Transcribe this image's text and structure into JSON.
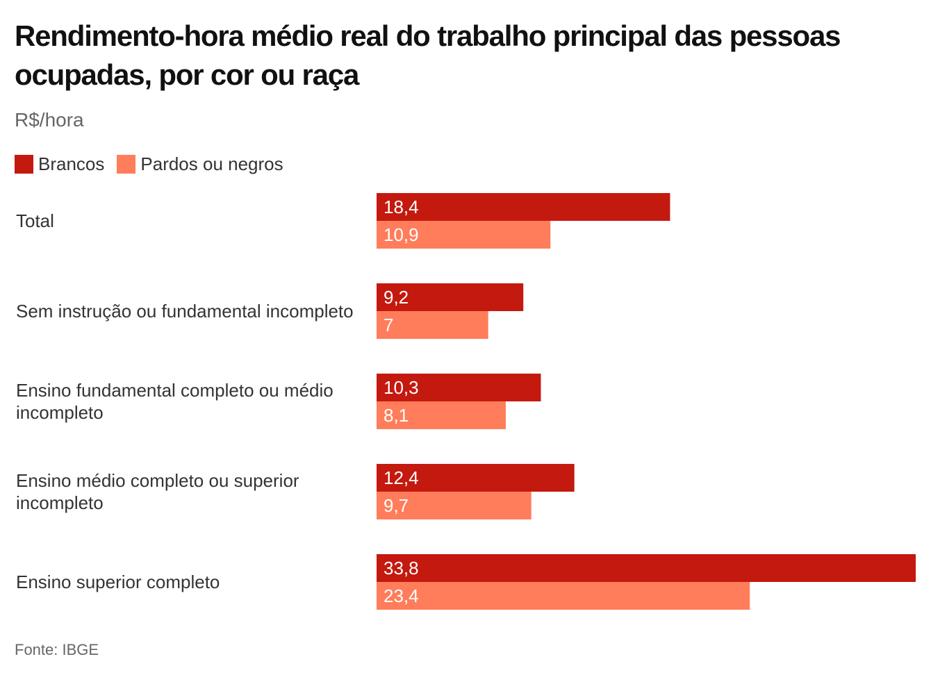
{
  "title": "Rendimento-hora médio real do trabalho principal das pessoas ocupadas, por cor ou raça",
  "subtitle": "R$/hora",
  "source": "Fonte: IBGE",
  "colors": {
    "brancos": "#c4190f",
    "pardos": "#ff7d5a",
    "value_label": "#ffffff"
  },
  "chart_data": {
    "type": "bar",
    "orientation": "horizontal",
    "title": "Rendimento-hora médio real do trabalho principal das pessoas ocupadas, por cor ou raça",
    "subtitle": "R$/hora",
    "categories": [
      "Total",
      "Sem instrução ou fundamental incompleto",
      "Ensino fundamental completo ou médio incompleto",
      "Ensino médio completo ou superior incompleto",
      "Ensino superior completo"
    ],
    "series": [
      {
        "name": "Brancos",
        "color": "#c4190f",
        "values": [
          18.4,
          9.2,
          10.3,
          12.4,
          33.8
        ],
        "labels": [
          "18,4",
          "9,2",
          "10,3",
          "12,4",
          "33,8"
        ]
      },
      {
        "name": "Pardos ou negros",
        "color": "#ff7d5a",
        "values": [
          10.9,
          7,
          8.1,
          9.7,
          23.4
        ],
        "labels": [
          "10,9",
          "7",
          "8,1",
          "9,7",
          "23,4"
        ]
      }
    ],
    "xlim": [
      0,
      33.8
    ],
    "grid": false,
    "legend": "top-left",
    "source": "Fonte: IBGE"
  }
}
